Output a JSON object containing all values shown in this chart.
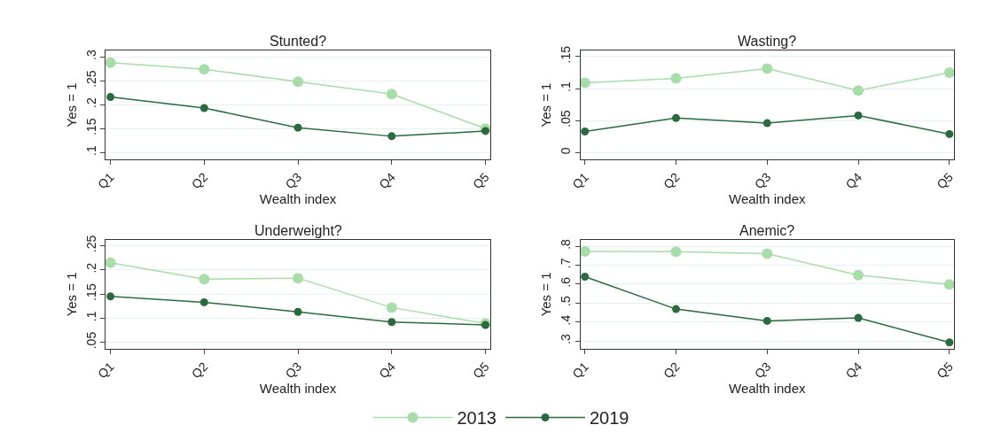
{
  "chart_data": [
    {
      "type": "line",
      "title": "Stunted?",
      "xlabel": "Wealth index",
      "ylabel": "Yes = 1",
      "categories": [
        "Q1",
        "Q2",
        "Q3",
        "Q4",
        "Q5"
      ],
      "marker": "circle",
      "line_style": "solid",
      "grid": "y",
      "legend": "bottom",
      "ylim": [
        0.085,
        0.314
      ],
      "yticks": [
        {
          "value": 0.1,
          "label": ".1"
        },
        {
          "value": 0.15,
          "label": ".15"
        },
        {
          "value": 0.2,
          "label": ".2"
        },
        {
          "value": 0.25,
          "label": ".25"
        },
        {
          "value": 0.3,
          "label": ".3"
        }
      ],
      "series": [
        {
          "name": "2013",
          "color": "#a8dca8",
          "values": [
            0.288,
            0.274,
            0.248,
            0.222,
            0.15
          ]
        },
        {
          "name": "2019",
          "color": "#2a6a3e",
          "values": [
            0.216,
            0.193,
            0.152,
            0.134,
            0.145
          ]
        }
      ]
    },
    {
      "type": "line",
      "title": "Wasting?",
      "xlabel": "Wealth index",
      "ylabel": "Yes = 1",
      "categories": [
        "Q1",
        "Q2",
        "Q3",
        "Q4",
        "Q5"
      ],
      "marker": "circle",
      "line_style": "solid",
      "grid": "y",
      "ylim": [
        -0.011,
        0.16
      ],
      "yticks": [
        0,
        {
          "value": 0.05,
          "label": ".05"
        },
        {
          "value": 0.1,
          "label": ".1"
        },
        {
          "value": 0.15,
          "label": ".15"
        }
      ],
      "series": [
        {
          "name": "2013",
          "color": "#a8dca8",
          "values": [
            0.109,
            0.116,
            0.131,
            0.097,
            0.125
          ]
        },
        {
          "name": "2019",
          "color": "#2a6a3e",
          "values": [
            0.033,
            0.054,
            0.046,
            0.058,
            0.029
          ]
        }
      ]
    },
    {
      "type": "line",
      "title": "Underweight?",
      "xlabel": "Wealth index",
      "ylabel": "Yes = 1",
      "categories": [
        "Q1",
        "Q2",
        "Q3",
        "Q4",
        "Q5"
      ],
      "marker": "circle",
      "line_style": "solid",
      "grid": "y",
      "ylim": [
        0.036,
        0.263
      ],
      "yticks": [
        {
          "value": 0.05,
          "label": ".05"
        },
        {
          "value": 0.1,
          "label": ".1"
        },
        {
          "value": 0.15,
          "label": ".15"
        },
        {
          "value": 0.2,
          "label": ".2"
        },
        {
          "value": 0.25,
          "label": ".25"
        }
      ],
      "series": [
        {
          "name": "2013",
          "color": "#a8dca8",
          "values": [
            0.215,
            0.181,
            0.183,
            0.122,
            0.089
          ]
        },
        {
          "name": "2019",
          "color": "#2a6a3e",
          "values": [
            0.145,
            0.133,
            0.113,
            0.092,
            0.086
          ]
        }
      ]
    },
    {
      "type": "line",
      "title": "Anemic?",
      "xlabel": "Wealth index",
      "ylabel": "Yes = 1",
      "categories": [
        "Q1",
        "Q2",
        "Q3",
        "Q4",
        "Q5"
      ],
      "marker": "circle",
      "line_style": "solid",
      "grid": "y",
      "ylim": [
        0.257,
        0.835
      ],
      "yticks": [
        {
          "value": 0.3,
          "label": ".3"
        },
        {
          "value": 0.4,
          "label": ".4"
        },
        {
          "value": 0.5,
          "label": ".5"
        },
        {
          "value": 0.6,
          "label": ".6"
        },
        {
          "value": 0.7,
          "label": ".7"
        },
        {
          "value": 0.8,
          "label": ".8"
        }
      ],
      "series": [
        {
          "name": "2013",
          "color": "#a8dca8",
          "values": [
            0.772,
            0.771,
            0.76,
            0.647,
            0.598
          ]
        },
        {
          "name": "2019",
          "color": "#2a6a3e",
          "values": [
            0.639,
            0.468,
            0.406,
            0.422,
            0.292
          ]
        }
      ]
    }
  ]
}
